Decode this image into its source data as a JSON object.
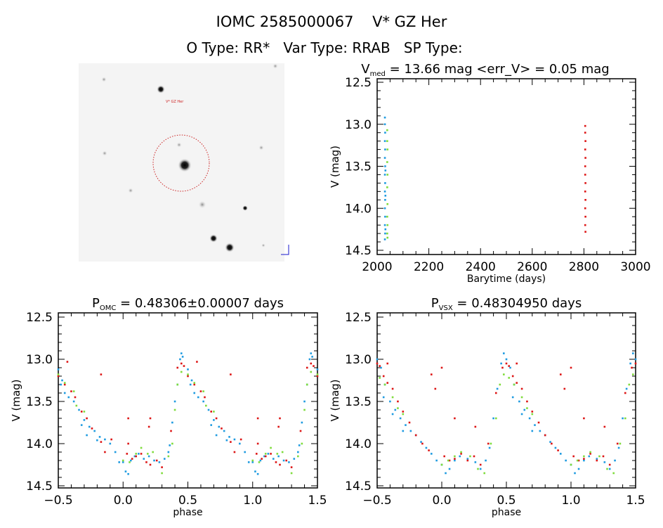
{
  "header": {
    "title": "IOMC 2585000067    V* GZ Her",
    "subtitle": "O Type: RR*   Var Type: RRAB   SP Type:"
  },
  "finder": {
    "target_label": "V* GZ Her",
    "circle_color": "#cc2222"
  },
  "colors": {
    "blue": "#1e9be0",
    "green": "#7fdc3c",
    "red": "#dd1515",
    "darkred": "#a0304a"
  },
  "chart_data": [
    {
      "type": "scatter",
      "title_main": "V",
      "title_sub": "med",
      "title_rest": " = 13.66 mag <err_V> = 0.05 mag",
      "xlabel": "Barytime (days)",
      "ylabel": "V (mag)",
      "xlim": [
        2000,
        3000
      ],
      "ylim": [
        14.5,
        12.5
      ],
      "xticks": [
        "2000",
        "2200",
        "2400",
        "2600",
        "2800",
        "3000"
      ],
      "yticks": [
        "12.5",
        "13.0",
        "13.5",
        "14.0",
        "14.5"
      ],
      "series": [
        {
          "color": "blue",
          "points": [
            [
              2030,
              12.92
            ],
            [
              2030,
              13.0
            ],
            [
              2031,
              13.1
            ],
            [
              2030,
              13.2
            ],
            [
              2031,
              13.3
            ],
            [
              2030,
              13.4
            ],
            [
              2031,
              13.5
            ],
            [
              2030,
              13.6
            ],
            [
              2031,
              13.7
            ],
            [
              2030,
              13.8
            ],
            [
              2031,
              13.9
            ],
            [
              2030,
              14.0
            ],
            [
              2031,
              14.1
            ],
            [
              2030,
              14.2
            ],
            [
              2031,
              14.3
            ],
            [
              2030,
              14.37
            ],
            [
              2032,
              13.55
            ],
            [
              2032,
              13.85
            ],
            [
              2032,
              14.25
            ]
          ]
        },
        {
          "color": "green",
          "points": [
            [
              2039,
              13.07
            ],
            [
              2039,
              13.2
            ],
            [
              2040,
              13.3
            ],
            [
              2039,
              13.45
            ],
            [
              2040,
              13.6
            ],
            [
              2039,
              13.75
            ],
            [
              2040,
              13.95
            ],
            [
              2039,
              14.1
            ],
            [
              2040,
              14.2
            ],
            [
              2039,
              14.3
            ],
            [
              2040,
              14.35
            ]
          ]
        },
        {
          "color": "red",
          "points": [
            [
              2805,
              13.02
            ],
            [
              2805,
              13.1
            ],
            [
              2806,
              13.2
            ],
            [
              2805,
              13.3
            ],
            [
              2806,
              13.4
            ],
            [
              2805,
              13.5
            ],
            [
              2805,
              13.6
            ],
            [
              2806,
              13.7
            ],
            [
              2805,
              13.8
            ],
            [
              2806,
              13.9
            ],
            [
              2805,
              14.0
            ],
            [
              2806,
              14.1
            ],
            [
              2805,
              14.2
            ],
            [
              2806,
              14.28
            ]
          ]
        }
      ]
    },
    {
      "type": "scatter",
      "title_main": "P",
      "title_sub": "OMC",
      "title_rest": " = 0.48306±0.00007 days",
      "xlabel": "phase",
      "ylabel": "V (mag)",
      "xlim": [
        -0.5,
        1.5
      ],
      "ylim": [
        14.5,
        12.5
      ],
      "xticks": [
        "-0.5",
        "0.0",
        "0.5",
        "1.0",
        "1.5"
      ],
      "yticks": [
        "12.5",
        "13.0",
        "13.5",
        "14.0",
        "14.5"
      ],
      "series": [
        {
          "color": "blue",
          "points": [
            [
              0.0,
              14.22
            ],
            [
              0.02,
              14.33
            ],
            [
              0.04,
              14.36
            ],
            [
              0.06,
              14.2
            ],
            [
              0.09,
              14.15
            ],
            [
              0.12,
              14.12
            ],
            [
              0.16,
              14.18
            ],
            [
              0.2,
              14.15
            ],
            [
              0.24,
              14.2
            ],
            [
              0.28,
              14.22
            ],
            [
              0.32,
              14.18
            ],
            [
              0.35,
              14.1
            ],
            [
              0.36,
              14.02
            ],
            [
              0.38,
              13.75
            ],
            [
              0.4,
              13.5
            ],
            [
              0.42,
              13.3
            ],
            [
              0.44,
              13.0
            ],
            [
              0.45,
              12.93
            ],
            [
              0.46,
              12.97
            ],
            [
              0.5,
              13.12
            ],
            [
              0.53,
              13.25
            ],
            [
              0.55,
              13.4
            ],
            [
              0.58,
              13.45
            ],
            [
              0.62,
              13.5
            ],
            [
              0.66,
              13.6
            ],
            [
              0.7,
              13.72
            ],
            [
              0.74,
              13.8
            ],
            [
              0.78,
              13.85
            ],
            [
              0.82,
              13.92
            ],
            [
              0.86,
              13.95
            ],
            [
              0.9,
              14.0
            ],
            [
              0.94,
              14.1
            ],
            [
              0.97,
              14.22
            ],
            [
              0.52,
              13.3
            ],
            [
              0.68,
              13.78
            ],
            [
              0.72,
              13.9
            ],
            [
              0.8,
              13.96
            ]
          ]
        },
        {
          "color": "red",
          "points": [
            [
              0.03,
              14.12
            ],
            [
              0.07,
              14.18
            ],
            [
              0.1,
              14.15
            ],
            [
              0.14,
              14.12
            ],
            [
              0.18,
              14.22
            ],
            [
              0.21,
              14.25
            ],
            [
              0.26,
              14.2
            ],
            [
              0.3,
              14.28
            ],
            [
              0.37,
              13.85
            ],
            [
              0.42,
              13.1
            ],
            [
              0.45,
              13.05
            ],
            [
              0.47,
              13.08
            ],
            [
              0.5,
              13.2
            ],
            [
              0.55,
              13.3
            ],
            [
              0.6,
              13.38
            ],
            [
              0.63,
              13.45
            ],
            [
              0.68,
              13.62
            ],
            [
              0.72,
              13.7
            ],
            [
              0.76,
              13.82
            ],
            [
              0.83,
              13.98
            ],
            [
              0.86,
              14.1
            ],
            [
              0.91,
              13.95
            ],
            [
              0.57,
              13.03
            ],
            [
              0.83,
              13.18
            ],
            [
              0.04,
              13.7
            ],
            [
              0.2,
              13.8
            ],
            [
              0.21,
              13.7
            ],
            [
              0.04,
              14.0
            ]
          ]
        },
        {
          "color": "green",
          "points": [
            [
              0.0,
              14.2
            ],
            [
              0.05,
              14.22
            ],
            [
              0.1,
              14.12
            ],
            [
              0.14,
              14.05
            ],
            [
              0.19,
              14.12
            ],
            [
              0.23,
              14.1
            ],
            [
              0.3,
              14.35
            ],
            [
              0.35,
              14.15
            ],
            [
              0.38,
              14.0
            ],
            [
              0.4,
              13.6
            ],
            [
              0.42,
              13.3
            ],
            [
              0.45,
              13.15
            ],
            [
              0.5,
              13.18
            ],
            [
              0.55,
              13.28
            ],
            [
              0.62,
              13.38
            ],
            [
              0.64,
              13.55
            ],
            [
              0.7,
              13.62
            ]
          ]
        }
      ]
    },
    {
      "type": "scatter",
      "title_main": "P",
      "title_sub": "VSX",
      "title_rest": " = 0.48304950 days",
      "xlabel": "phase",
      "ylabel": "V (mag)",
      "xlim": [
        -0.5,
        1.5
      ],
      "ylim": [
        14.5,
        12.5
      ],
      "xticks": [
        "-0.5",
        "0.0",
        "0.5",
        "1.0",
        "1.5"
      ],
      "yticks": [
        "12.5",
        "13.0",
        "13.5",
        "14.0",
        "14.5"
      ],
      "series": [
        {
          "color": "blue",
          "points": [
            [
              0.0,
              14.25
            ],
            [
              0.03,
              14.35
            ],
            [
              0.06,
              14.3
            ],
            [
              0.1,
              14.2
            ],
            [
              0.14,
              14.15
            ],
            [
              0.2,
              14.18
            ],
            [
              0.26,
              14.22
            ],
            [
              0.3,
              14.3
            ],
            [
              0.34,
              14.2
            ],
            [
              0.37,
              14.05
            ],
            [
              0.4,
              13.7
            ],
            [
              0.43,
              13.35
            ],
            [
              0.46,
              13.05
            ],
            [
              0.48,
              12.93
            ],
            [
              0.5,
              13.0
            ],
            [
              0.53,
              13.1
            ],
            [
              0.56,
              13.3
            ],
            [
              0.6,
              13.5
            ],
            [
              0.64,
              13.6
            ],
            [
              0.68,
              13.7
            ],
            [
              0.72,
              13.78
            ],
            [
              0.76,
              13.85
            ],
            [
              0.8,
              13.9
            ],
            [
              0.84,
              13.98
            ],
            [
              0.88,
              14.05
            ],
            [
              0.92,
              14.12
            ],
            [
              0.96,
              14.2
            ],
            [
              0.55,
              13.45
            ],
            [
              0.62,
              13.65
            ],
            [
              0.7,
              13.85
            ]
          ]
        },
        {
          "color": "red",
          "points": [
            [
              0.02,
              14.15
            ],
            [
              0.06,
              14.2
            ],
            [
              0.1,
              14.18
            ],
            [
              0.15,
              14.12
            ],
            [
              0.2,
              14.2
            ],
            [
              0.25,
              14.15
            ],
            [
              0.3,
              14.25
            ],
            [
              0.36,
              14.0
            ],
            [
              0.42,
              13.4
            ],
            [
              0.47,
              13.1
            ],
            [
              0.5,
              13.05
            ],
            [
              0.52,
              13.08
            ],
            [
              0.55,
              13.2
            ],
            [
              0.58,
              13.28
            ],
            [
              0.62,
              13.35
            ],
            [
              0.66,
              13.5
            ],
            [
              0.7,
              13.62
            ],
            [
              0.75,
              13.75
            ],
            [
              0.8,
              13.9
            ],
            [
              0.85,
              14.0
            ],
            [
              0.9,
              14.08
            ],
            [
              0.58,
              13.05
            ],
            [
              0.92,
              13.18
            ],
            [
              0.1,
              13.7
            ],
            [
              0.26,
              13.8
            ],
            [
              0.95,
              13.35
            ],
            [
              1.0,
              13.1
            ]
          ]
        },
        {
          "color": "green",
          "points": [
            [
              0.0,
              14.25
            ],
            [
              0.05,
              14.2
            ],
            [
              0.1,
              14.15
            ],
            [
              0.15,
              14.1
            ],
            [
              0.22,
              14.15
            ],
            [
              0.28,
              14.3
            ],
            [
              0.33,
              14.35
            ],
            [
              0.38,
              14.0
            ],
            [
              0.42,
              13.7
            ],
            [
              0.45,
              13.3
            ],
            [
              0.48,
              13.18
            ],
            [
              0.52,
              13.22
            ],
            [
              0.56,
              13.3
            ],
            [
              0.62,
              13.45
            ],
            [
              0.66,
              13.58
            ],
            [
              0.7,
              13.65
            ]
          ]
        }
      ]
    }
  ]
}
